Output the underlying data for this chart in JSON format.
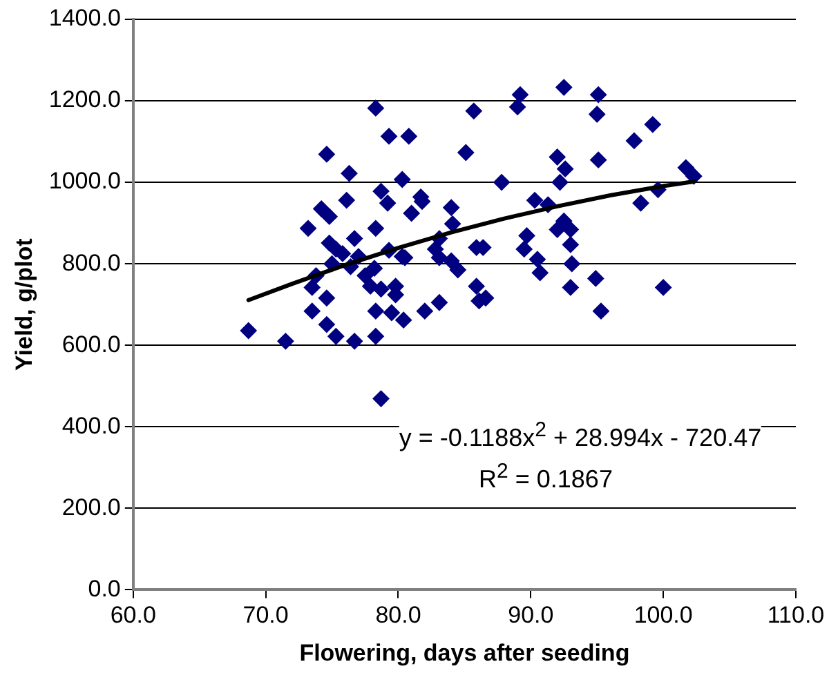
{
  "chart_data": {
    "type": "scatter",
    "xlabel": "Flowering, days after seeding",
    "ylabel": "Yield, g/plot",
    "xlim": [
      60,
      110
    ],
    "ylim": [
      0,
      1400
    ],
    "xticks": [
      {
        "value": 60,
        "label": "60.0"
      },
      {
        "value": 70,
        "label": "70.0"
      },
      {
        "value": 80,
        "label": "80.0"
      },
      {
        "value": 90,
        "label": "90.0"
      },
      {
        "value": 100,
        "label": "100.0"
      },
      {
        "value": 110,
        "label": "110.0"
      }
    ],
    "yticks": [
      {
        "value": 0,
        "label": "0.0"
      },
      {
        "value": 200,
        "label": "200.0"
      },
      {
        "value": 400,
        "label": "400.0"
      },
      {
        "value": 600,
        "label": "600.0"
      },
      {
        "value": 800,
        "label": "800.0"
      },
      {
        "value": 1000,
        "label": "1000.0"
      },
      {
        "value": 1200,
        "label": "1200.0"
      },
      {
        "value": 1400,
        "label": "1400.0"
      }
    ],
    "grid": "y",
    "legend": false,
    "annotations": [
      "y = -0.1188x$^{2}$ + 28.994x - 720.47",
      "R$^{2}$ = 0.1867"
    ],
    "series": [
      {
        "color": "#000080",
        "marker": "diamond",
        "x": [
          68.7,
          71.5,
          74.6,
          76.3,
          73.2,
          74.2,
          74.8,
          76.1,
          76.7,
          74.8,
          75.3,
          75.8,
          75.0,
          76.4,
          77.0,
          73.8,
          73.5,
          74.6,
          73.5,
          74.6,
          75.3,
          76.7,
          78.3,
          78.3,
          79.5,
          80.4,
          82.0,
          83.1,
          77.5,
          78.2,
          77.9,
          78.7,
          79.8,
          79.8,
          78.3,
          78.3,
          79.3,
          80.8,
          78.7,
          79.2,
          80.3,
          81.0,
          81.7,
          81.8,
          79.3,
          80.5,
          80.3,
          83.1,
          82.8,
          83.1,
          84.0,
          84.1,
          84.0,
          84.5,
          85.1,
          85.7,
          85.9,
          86.4,
          85.9,
          86.1,
          86.6,
          87.8,
          89.0,
          89.2,
          89.5,
          89.7,
          90.3,
          90.5,
          90.7,
          91.3,
          92.5,
          92.0,
          92.6,
          92.2,
          92.5,
          92.0,
          93.0,
          93.0,
          93.1,
          93.0,
          94.9,
          95.3,
          95.1,
          95.0,
          95.1,
          97.8,
          99.2,
          98.3,
          99.6,
          100.0,
          101.7,
          102.3,
          78.7
        ],
        "values": [
          636,
          610,
          1069,
          1022,
          887,
          935,
          916,
          956,
          862,
          851,
          836,
          825,
          800,
          793,
          818,
          771,
          742,
          716,
          684,
          651,
          622,
          610,
          622,
          684,
          680,
          662,
          684,
          705,
          771,
          789,
          745,
          738,
          745,
          724,
          887,
          1182,
          1113,
          1113,
          978,
          949,
          1007,
          924,
          964,
          953,
          833,
          815,
          818,
          862,
          836,
          815,
          938,
          898,
          807,
          785,
          1073,
          1175,
          840,
          840,
          745,
          709,
          716,
          1000,
          1185,
          1215,
          836,
          869,
          956,
          811,
          778,
          945,
          1233,
          1062,
          1033,
          1000,
          905,
          884,
          884,
          847,
          800,
          742,
          764,
          684,
          1215,
          1167,
          1055,
          1102,
          1142,
          949,
          982,
          742,
          1036,
          1015,
          469
        ]
      },
      {
        "type": "line",
        "color": "#000000",
        "marker": "none",
        "line_style": "solid",
        "x": [
          68.7,
          72,
          76,
          80,
          84,
          88,
          92,
          96,
          100,
          102.3
        ],
        "values": [
          711,
          751,
          797,
          839,
          877,
          911,
          941,
          968,
          991,
          1002
        ]
      }
    ]
  }
}
